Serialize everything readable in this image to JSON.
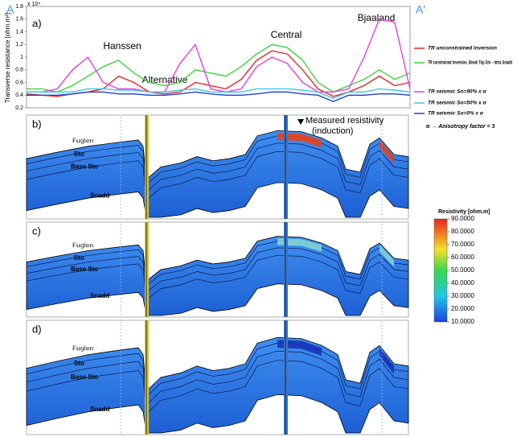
{
  "chart_data": {
    "type": "line",
    "panel_label": "a)",
    "y_label": "Transverse resistance [ohm.m²]",
    "y_multiplier": "x 10⁴",
    "ylim": [
      0.2,
      1.8
    ],
    "yticks": [
      0.2,
      0.4,
      0.6,
      0.8,
      1,
      1.2,
      1.4,
      1.6,
      1.8
    ],
    "xlim": [
      0,
      100
    ],
    "x": [
      0,
      4,
      8,
      12,
      16,
      20,
      24,
      28,
      32,
      36,
      40,
      44,
      48,
      52,
      56,
      60,
      64,
      68,
      72,
      76,
      80,
      84,
      88,
      92,
      96,
      100
    ],
    "series": [
      {
        "name": "TR unconstrained inversion",
        "color": "#e8262a",
        "values": [
          0.42,
          0.4,
          0.38,
          0.42,
          0.45,
          0.5,
          0.7,
          0.6,
          0.45,
          0.42,
          0.45,
          0.6,
          0.55,
          0.5,
          0.65,
          0.95,
          1.1,
          1.05,
          0.8,
          0.5,
          0.38,
          0.45,
          0.55,
          0.7,
          0.55,
          0.6
        ]
      },
      {
        "name": "TR constrained inversion, Break Top Sto – Intra Snadd",
        "color": "#3ed33e",
        "values": [
          0.5,
          0.5,
          0.45,
          0.55,
          0.7,
          0.85,
          0.95,
          0.75,
          0.6,
          0.55,
          0.6,
          0.8,
          0.75,
          0.7,
          0.85,
          1.05,
          1.2,
          1.15,
          0.95,
          0.6,
          0.45,
          0.55,
          0.65,
          0.8,
          0.65,
          0.75
        ]
      },
      {
        "name": "TR seismic So=90% x α",
        "color": "#e83ce0",
        "values": [
          0.45,
          0.45,
          0.5,
          0.8,
          1.0,
          0.6,
          0.5,
          0.5,
          0.45,
          0.45,
          0.9,
          1.2,
          0.5,
          0.45,
          0.5,
          0.85,
          1.0,
          0.9,
          0.6,
          0.45,
          0.45,
          0.5,
          1.0,
          1.6,
          1.55,
          0.5
        ]
      },
      {
        "name": "TR seismic So=50% x α",
        "color": "#38c8e8",
        "values": [
          0.45,
          0.45,
          0.45,
          0.45,
          0.5,
          0.5,
          0.48,
          0.48,
          0.45,
          0.45,
          0.48,
          0.5,
          0.45,
          0.45,
          0.45,
          0.5,
          0.5,
          0.5,
          0.48,
          0.45,
          0.35,
          0.45,
          0.45,
          0.5,
          0.48,
          0.45
        ]
      },
      {
        "name": "TR seismic So=0% x α",
        "color": "#1c3fd8",
        "values": [
          0.4,
          0.4,
          0.4,
          0.42,
          0.45,
          0.45,
          0.42,
          0.42,
          0.4,
          0.4,
          0.42,
          0.45,
          0.42,
          0.4,
          0.4,
          0.42,
          0.45,
          0.45,
          0.42,
          0.4,
          0.3,
          0.4,
          0.4,
          0.42,
          0.42,
          0.4
        ]
      }
    ],
    "annotations": {
      "start": "A",
      "end": "A′",
      "hanssen": "Hanssen",
      "alternative": "Alternative",
      "central": "Central",
      "bjaaland": "Bjaaland",
      "anisotropy": "α → Anisotropy factor = 3"
    }
  },
  "sections": [
    {
      "label": "b)",
      "fuglen": "Fuglen",
      "sto": "Sto",
      "base_sto": "Base Sto",
      "snadd": "Snadd"
    },
    {
      "label": "c)",
      "fuglen": "Fuglen",
      "sto": "Sto",
      "base_sto": "Base Sto",
      "snadd": "Snadd"
    },
    {
      "label": "d)",
      "fuglen": "Fuglen",
      "sto": "Sto",
      "base_sto": "Base Sto",
      "snadd": "Snadd"
    }
  ],
  "well_annotation": [
    "Measured resistivity",
    "(induction)"
  ],
  "colorbar": {
    "title": "Resistivity [ohm.m]",
    "lim": [
      10,
      90
    ],
    "ticks": [
      {
        "value": 90,
        "label": "90.0000"
      },
      {
        "value": 80,
        "label": "80.0000"
      },
      {
        "value": 70,
        "label": "70.0000"
      },
      {
        "value": 60,
        "label": "60.0000"
      },
      {
        "value": 50,
        "label": "50.0000"
      },
      {
        "value": 40,
        "label": "40.0000"
      },
      {
        "value": 30,
        "label": "30.0000"
      },
      {
        "value": 20,
        "label": "20.0000"
      },
      {
        "value": 10,
        "label": "10.0000"
      }
    ]
  }
}
